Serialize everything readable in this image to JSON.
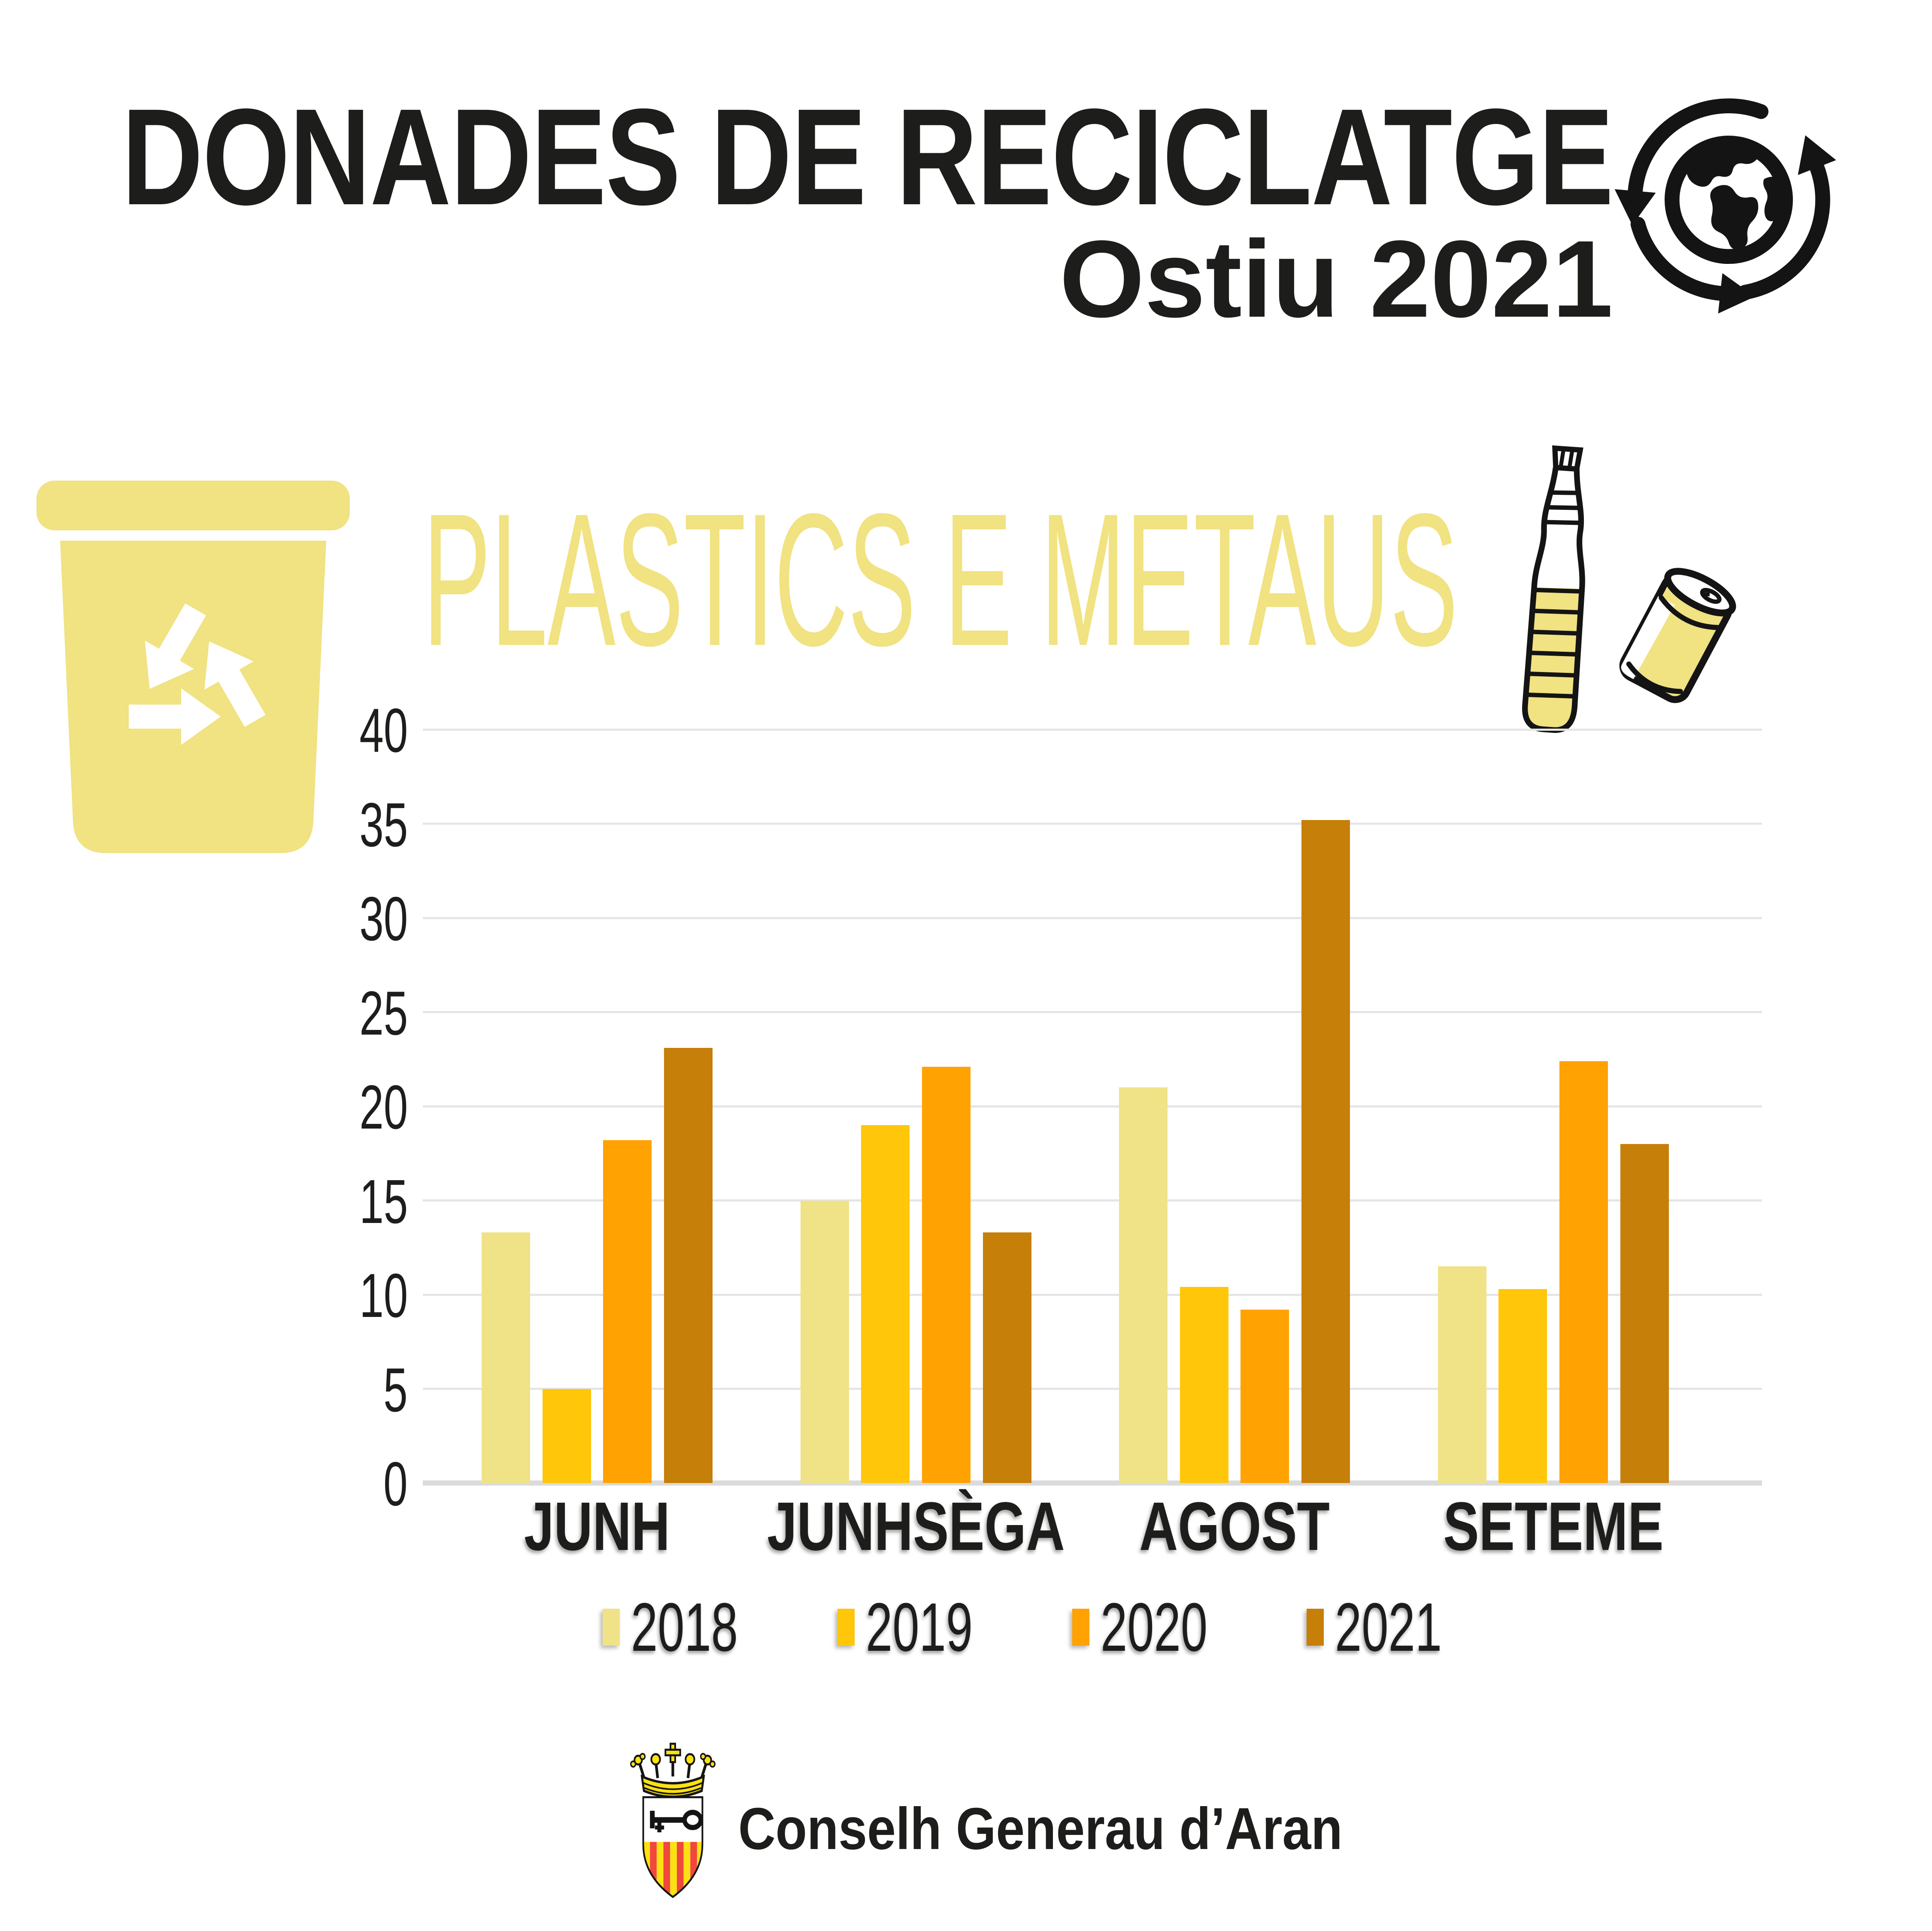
{
  "page": {
    "background": "#ffffff",
    "text_color": "#1d1d1b"
  },
  "header": {
    "title_line1": "DONADES DE RECICLATGE",
    "title_line2": "Ostiu 2021",
    "globe_icon": "globe-with-recycling-arrows"
  },
  "section_header": {
    "title": "PLASTICS E METAUS",
    "title_color": "#F1E282",
    "bin_icon": "yellow-recycling-bin",
    "bottle_icon": "plastic-bottle",
    "can_icon": "drink-can"
  },
  "chart_data": {
    "type": "bar",
    "title": "PLASTICS E METAUS",
    "categories": [
      "JUNH",
      "JUNHSÈGA",
      "AGOST",
      "SETEME"
    ],
    "series": [
      {
        "name": "2018",
        "color": "#F0E287",
        "values": [
          13.3,
          15.0,
          21.0,
          11.5
        ]
      },
      {
        "name": "2019",
        "color": "#FFC60A",
        "values": [
          5.0,
          19.0,
          10.4,
          10.3
        ]
      },
      {
        "name": "2020",
        "color": "#FFA202",
        "values": [
          18.2,
          22.1,
          9.2,
          22.4
        ]
      },
      {
        "name": "2021",
        "color": "#C67F08",
        "values": [
          23.1,
          13.3,
          35.2,
          18.0
        ]
      }
    ],
    "ylim": [
      0,
      40
    ],
    "yticks": [
      0,
      5,
      10,
      15,
      20,
      25,
      30,
      35,
      40
    ],
    "grid": "horizontal-only",
    "gridline_color": "#E5E5E5",
    "baseline_color": "#DBDBDB",
    "legend_position": "bottom"
  },
  "footer": {
    "org_name": "Conselh Generau d’Aran",
    "crest_icon": "conselh-generau-aran-coat-of-arms",
    "crest_colors": {
      "crown_yellow": "#FBE112",
      "stripe_yellow": "#FBE112",
      "stripe_red": "#F0483C",
      "field_white": "#ffffff",
      "charge_black": "#141414"
    }
  }
}
